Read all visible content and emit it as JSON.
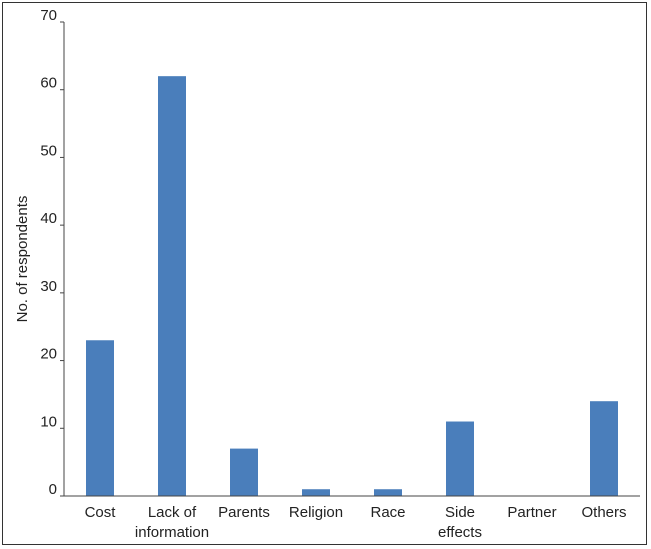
{
  "chart_data": {
    "type": "bar",
    "categories": [
      [
        "Cost"
      ],
      [
        "Lack of",
        "information"
      ],
      [
        "Parents"
      ],
      [
        "Religion"
      ],
      [
        "Race"
      ],
      [
        "Side",
        "effects"
      ],
      [
        "Partner"
      ],
      [
        "Others"
      ]
    ],
    "values": [
      23,
      62,
      7,
      1,
      1,
      11,
      0,
      14
    ],
    "ylabel": "No. of respondents",
    "xlabel": "",
    "ylim": [
      0,
      70
    ],
    "yticks": [
      0,
      10,
      20,
      30,
      40,
      50,
      60,
      70
    ],
    "bar_color": "#4a7ebb",
    "grid": false,
    "legend": "none"
  }
}
